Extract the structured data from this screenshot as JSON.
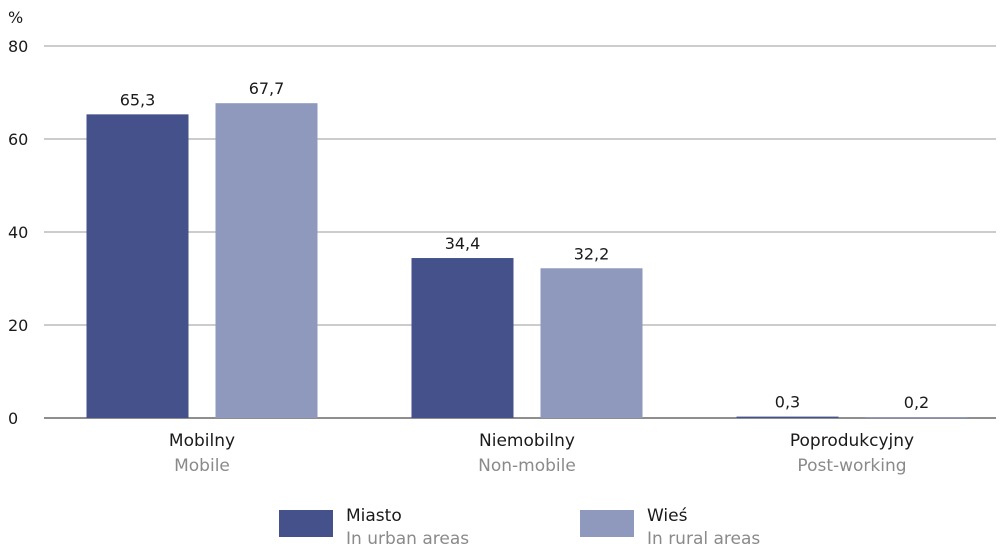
{
  "chart_data": {
    "type": "bar",
    "unit": "%",
    "categories": [
      "Mobilny",
      "Niemobilny",
      "Poprodukcyjny"
    ],
    "categories_en": [
      "Mobile",
      "Non-mobile",
      "Post-working"
    ],
    "series": [
      {
        "name": "Miasto",
        "name_en": "In urban areas",
        "color": "#44518a",
        "values": [
          65.3,
          34.4,
          0.3
        ],
        "labels": [
          "65,3",
          "34,4",
          "0,3"
        ]
      },
      {
        "name": "Wieś",
        "name_en": "In rural areas",
        "color": "#8e99bd",
        "values": [
          67.7,
          32.2,
          0.2
        ],
        "labels": [
          "67,7",
          "32,2",
          "0,2"
        ]
      }
    ],
    "ylim": [
      0,
      80
    ],
    "yticks": [
      0,
      20,
      40,
      60,
      80
    ],
    "grid": true,
    "legend_position": "bottom"
  }
}
